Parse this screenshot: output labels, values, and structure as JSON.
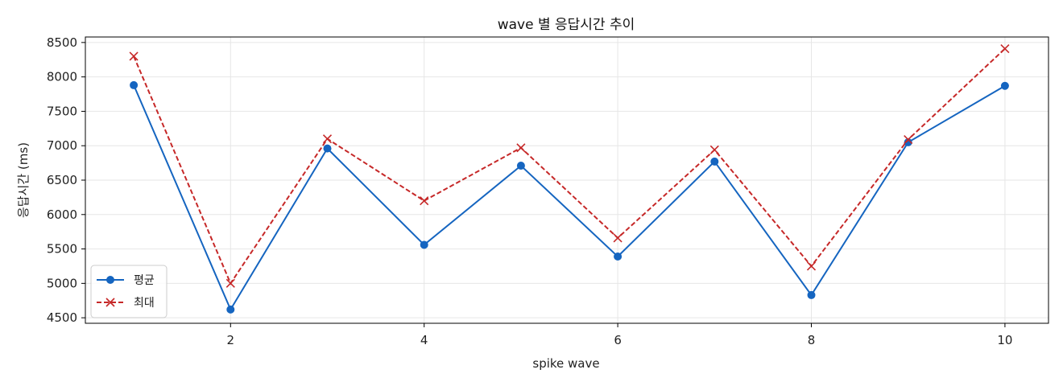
{
  "chart_data": {
    "type": "line",
    "title": "wave 별 응답시간 추이",
    "xlabel": "spike wave",
    "ylabel": "응답시간 (ms)",
    "xlim": [
      0.5,
      10.45
    ],
    "ylim": [
      4420,
      8580
    ],
    "x_ticks": [
      2,
      4,
      6,
      8,
      10
    ],
    "y_ticks": [
      4500,
      5000,
      5500,
      6000,
      6500,
      7000,
      7500,
      8000,
      8500
    ],
    "grid": true,
    "legend_position": "lower-left",
    "x": [
      1,
      2,
      3,
      4,
      5,
      6,
      7,
      8,
      9,
      10
    ],
    "series": [
      {
        "name": "평균",
        "color": "#1565c0",
        "line_style": "solid",
        "marker": "circle",
        "values": [
          7880,
          4620,
          6960,
          5560,
          6710,
          5390,
          6770,
          4830,
          7050,
          7870
        ]
      },
      {
        "name": "최대",
        "color": "#c62828",
        "line_style": "dashed",
        "marker": "x",
        "values": [
          8300,
          5000,
          7100,
          6200,
          6970,
          5660,
          6940,
          5250,
          7090,
          8410
        ]
      }
    ]
  }
}
